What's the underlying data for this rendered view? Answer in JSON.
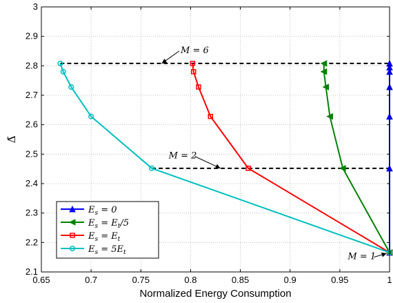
{
  "chart_data": {
    "type": "line",
    "title": "",
    "xlabel": "Normalized Energy Consumption",
    "ylabel": "Δ̄",
    "xlim": [
      0.65,
      1.0
    ],
    "ylim": [
      2.1,
      3.0
    ],
    "xticks": [
      "0.65",
      "0.7",
      "0.75",
      "0.8",
      "0.85",
      "0.9",
      "0.95",
      "1"
    ],
    "yticks": [
      "2.1",
      "2.2",
      "2.3",
      "2.4",
      "2.5",
      "2.6",
      "2.7",
      "2.8",
      "2.9",
      "3"
    ],
    "grid": true,
    "legend_position": "bottom-left",
    "series": [
      {
        "name": "E_s = 0",
        "label_parts": [
          "E",
          "s",
          " = 0"
        ],
        "color": "#0000ff",
        "marker": "triangle-up",
        "x": [
          1.0,
          1.0,
          1.0,
          1.0,
          1.0,
          1.0,
          1.0
        ],
        "y": [
          2.166,
          2.452,
          2.628,
          2.728,
          2.78,
          2.795,
          2.808
        ]
      },
      {
        "name": "E_s = E_t/5",
        "label_parts": [
          "E",
          "s",
          " = E",
          "t",
          "/5"
        ],
        "color": "#008000",
        "marker": "triangle-left",
        "x": [
          1.0,
          0.953,
          0.94,
          0.936,
          0.934,
          0.934
        ],
        "y": [
          2.166,
          2.452,
          2.628,
          2.728,
          2.78,
          2.808
        ]
      },
      {
        "name": "E_s = E_t",
        "label_parts": [
          "E",
          "s",
          " = E",
          "t",
          ""
        ],
        "color": "#ff0000",
        "marker": "square",
        "x": [
          1.0,
          0.858,
          0.82,
          0.808,
          0.803,
          0.802
        ],
        "y": [
          2.166,
          2.452,
          2.628,
          2.728,
          2.78,
          2.808
        ]
      },
      {
        "name": "E_s = 5E_t",
        "label_parts": [
          "E",
          "s",
          " = 5E",
          "t",
          ""
        ],
        "color": "#00bfbf",
        "marker": "circle",
        "x": [
          1.0,
          0.761,
          0.7,
          0.68,
          0.672,
          0.669
        ],
        "y": [
          2.166,
          2.452,
          2.628,
          2.728,
          2.78,
          2.808
        ]
      }
    ],
    "reference_lines": [
      {
        "y": 2.808,
        "x_from": 0.669,
        "x_to": 1.0,
        "style": "dashed"
      },
      {
        "y": 2.452,
        "x_from": 0.761,
        "x_to": 1.0,
        "style": "dashed"
      }
    ],
    "annotations": [
      {
        "text": "M = 6",
        "text_x": 0.79,
        "text_y": 2.855,
        "arrow_to_x": 0.771,
        "arrow_to_y": 2.808
      },
      {
        "text": "M = 2",
        "text_x": 0.778,
        "text_y": 2.497,
        "arrow_to_x": 0.83,
        "arrow_to_y": 2.452
      },
      {
        "text": "M = 1",
        "text_x": 0.958,
        "text_y": 2.155,
        "arrow_to_x": 0.997,
        "arrow_to_y": 2.163
      }
    ]
  }
}
